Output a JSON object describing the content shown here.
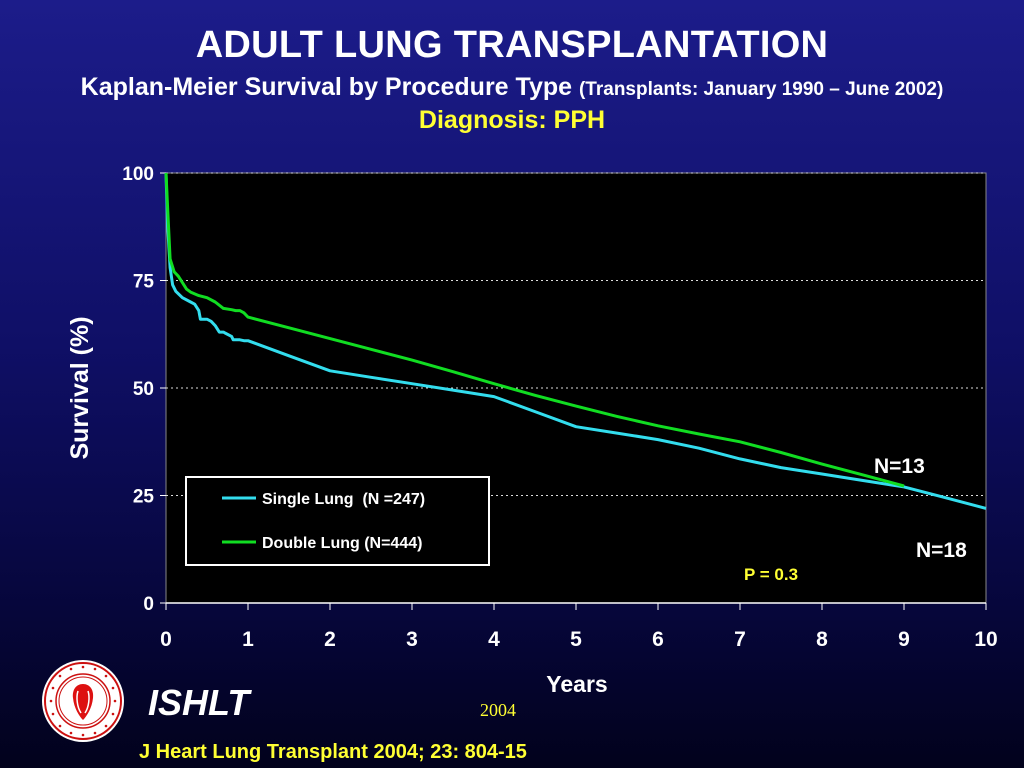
{
  "header": {
    "title": "ADULT LUNG TRANSPLANTATION",
    "subtitle_main": "Kaplan-Meier Survival by Procedure Type",
    "subtitle_paren": "(Transplants: January 1990 – June 2002)",
    "diagnosis": "Diagnosis: PPH"
  },
  "colors": {
    "single_lung": "#33ddee",
    "double_lung": "#11dd22",
    "highlight_text": "#ffff33",
    "plot_background": "#000000"
  },
  "chart_data": {
    "type": "line",
    "title": "ADULT LUNG TRANSPLANTATION",
    "xlabel": "Years",
    "ylabel": "Survival (%)",
    "xlim": [
      0,
      10
    ],
    "ylim": [
      0,
      100
    ],
    "x_ticks": [
      0,
      1,
      2,
      3,
      4,
      5,
      6,
      7,
      8,
      9,
      10
    ],
    "y_ticks": [
      0,
      25,
      50,
      75,
      100
    ],
    "grid": "horizontal dotted",
    "legend": "bottom-left",
    "series": [
      {
        "name": "Single Lung  (N =247)",
        "color_key": "single_lung",
        "x": [
          0,
          0.02,
          0.05,
          0.08,
          0.12,
          0.2,
          0.3,
          0.35,
          0.4,
          0.42,
          0.5,
          0.55,
          0.6,
          0.65,
          0.7,
          0.72,
          0.8,
          0.82,
          0.9,
          0.95,
          1.0,
          1.5,
          2.0,
          2.5,
          3.0,
          3.5,
          4.0,
          4.5,
          5.0,
          5.5,
          6.0,
          6.5,
          7.0,
          7.5,
          8.0,
          8.5,
          9.0,
          9.5,
          10.0
        ],
        "y": [
          100,
          88,
          78,
          74,
          72.5,
          71,
          70,
          69.5,
          68,
          66,
          66,
          65.5,
          64.5,
          63,
          63,
          62.8,
          62,
          61.2,
          61.2,
          61,
          61,
          57.5,
          54,
          52.5,
          51,
          49.5,
          48,
          44.5,
          41,
          39.5,
          38,
          36,
          33.5,
          31.5,
          30,
          28.5,
          27,
          24.5,
          22
        ]
      },
      {
        "name": "Double Lung (N=444)",
        "color_key": "double_lung",
        "x": [
          0,
          0.02,
          0.05,
          0.1,
          0.15,
          0.2,
          0.25,
          0.3,
          0.4,
          0.5,
          0.6,
          0.7,
          0.8,
          0.85,
          0.9,
          0.95,
          1.0,
          1.5,
          2.0,
          2.5,
          3.0,
          3.5,
          4.0,
          4.5,
          5.0,
          5.5,
          6.0,
          6.5,
          7.0,
          7.5,
          8.0,
          8.5,
          9.0
        ],
        "y": [
          100,
          92,
          80,
          77,
          76,
          74.5,
          73,
          72.3,
          71.5,
          71,
          70,
          68.5,
          68.2,
          68,
          68,
          67.5,
          66.5,
          64,
          61.5,
          59,
          56.5,
          53.8,
          51,
          48.3,
          45.8,
          43.4,
          41.2,
          39.3,
          37.5,
          35,
          32.3,
          29.8,
          27.2
        ]
      }
    ],
    "annotations": [
      {
        "text": "N=13",
        "x": 9.0,
        "y": 31
      },
      {
        "text": "N=18",
        "x": 9.6,
        "y": 12
      },
      {
        "text": "P = 0.3",
        "x": 7.5,
        "y": 7
      }
    ]
  },
  "footer": {
    "logo_label": "ISHLT",
    "year": "2004",
    "citation": "J Heart Lung Transplant 2004; 23: 804-15"
  }
}
